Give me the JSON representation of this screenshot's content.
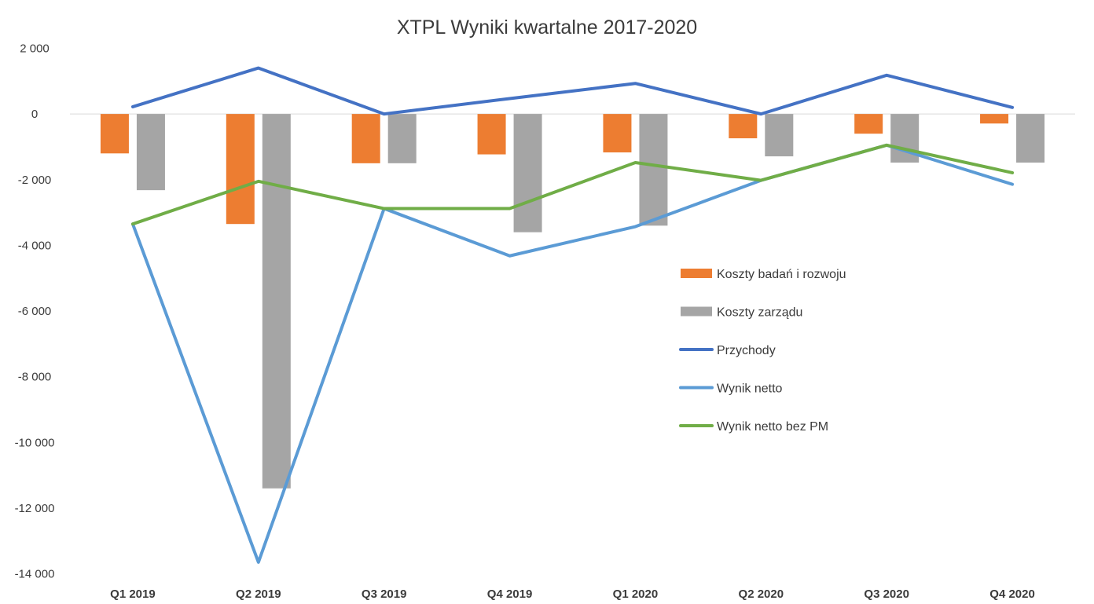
{
  "chart_data": {
    "type": "bar",
    "title": "XTPL Wyniki kwartalne 2017-2020",
    "categories": [
      "Q1 2019",
      "Q2 2019",
      "Q3 2019",
      "Q4 2019",
      "Q1 2020",
      "Q2 2020",
      "Q3 2020",
      "Q4 2020"
    ],
    "ylim": [
      -14000,
      2000
    ],
    "yticks": [
      2000,
      0,
      -2000,
      -4000,
      -6000,
      -8000,
      -10000,
      -12000,
      -14000
    ],
    "ytick_labels": [
      "2 000",
      "0",
      "-2 000",
      "-4 000",
      "-6 000",
      "-8 000",
      "-10 000",
      "-12 000",
      "-14 000"
    ],
    "grid": false,
    "legend_position": "right",
    "bar_series": [
      {
        "name": "Koszty badań i rozwoju",
        "color": "#ED7D31",
        "values": [
          -1200,
          -3350,
          -1500,
          -1230,
          -1170,
          -740,
          -600,
          -290
        ]
      },
      {
        "name": "Koszty zarządu",
        "color": "#A5A5A5",
        "values": [
          -2320,
          -11400,
          -1500,
          -3600,
          -3400,
          -1290,
          -1480,
          -1480
        ]
      }
    ],
    "line_series": [
      {
        "name": "Przychody",
        "color": "#4472C4",
        "values": [
          220,
          1400,
          0,
          470,
          930,
          0,
          1180,
          200
        ]
      },
      {
        "name": "Wynik netto",
        "color": "#5B9BD5",
        "values": [
          -3350,
          -13650,
          -2880,
          -4320,
          -3430,
          -2020,
          -950,
          -2140
        ]
      },
      {
        "name": "Wynik netto bez PM",
        "color": "#70AD47",
        "values": [
          -3350,
          -2050,
          -2880,
          -2880,
          -1480,
          -2020,
          -950,
          -1790
        ]
      }
    ]
  }
}
